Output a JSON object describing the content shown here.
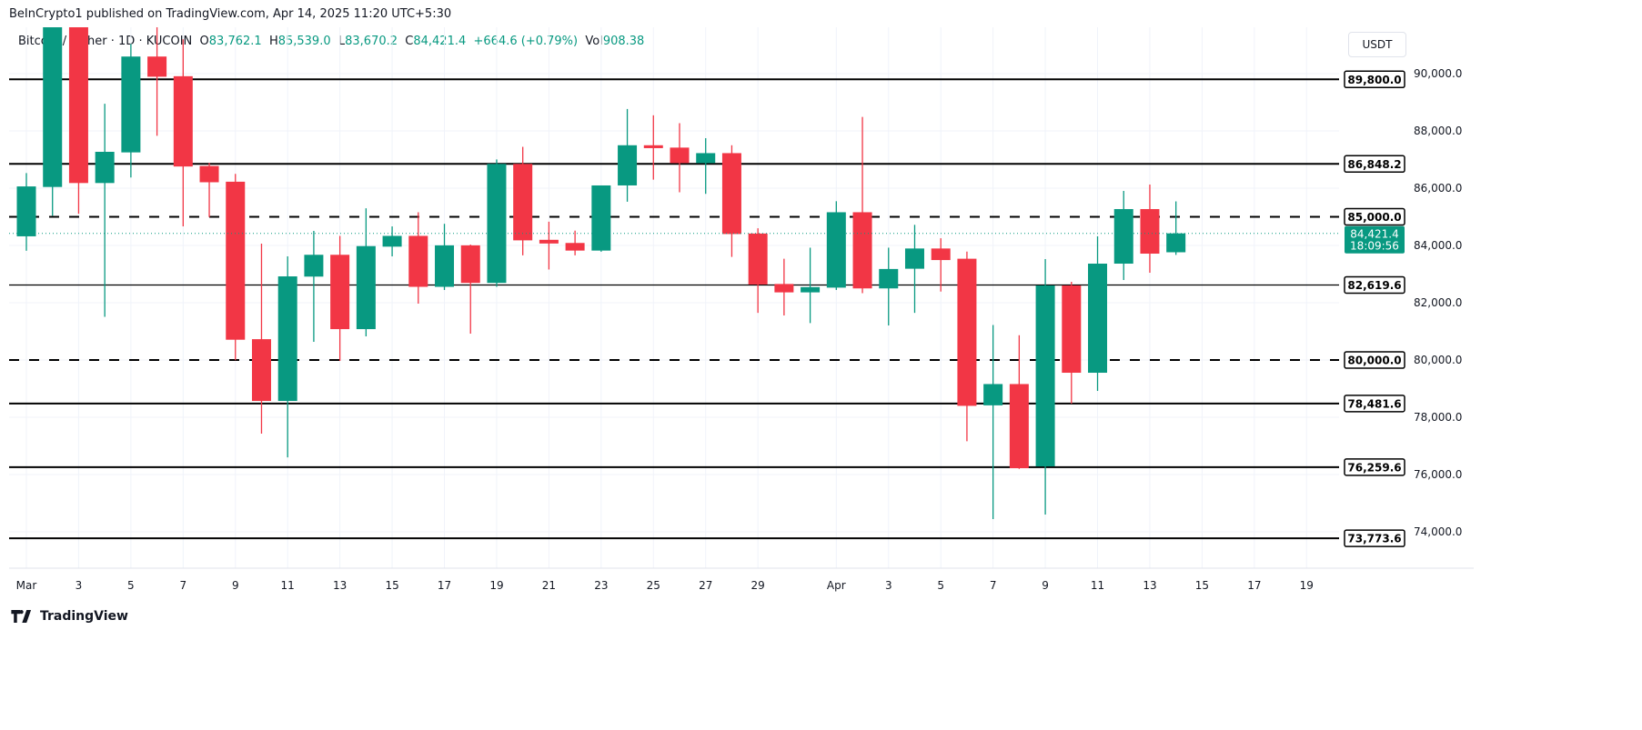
{
  "header": {
    "published": "BeInCrypto1 published on TradingView.com, Apr 14, 2025 11:20 UTC+5:30"
  },
  "legend": {
    "symbol": "Bitcoin / Tether · 1D · KUCOIN",
    "o_label": "O",
    "o": "83,762.1",
    "h_label": "H",
    "h": "85,539.0",
    "l_label": "L",
    "l": "83,670.2",
    "c_label": "C",
    "c": "84,421.4",
    "change": "+664.6 (+0.79%)",
    "vol_label": "Vol",
    "vol": "908.38"
  },
  "currency_button": "USDT",
  "footer": {
    "logo_text": "TradingView"
  },
  "colors": {
    "up": "#089981",
    "down": "#f23645",
    "lines": "#000000",
    "grid": "#f0f3fa"
  },
  "chart_data": {
    "type": "candlestick",
    "interval": "1D",
    "ylim": [
      73000,
      91700
    ],
    "grid": true,
    "columns": [
      "date",
      "open",
      "high",
      "low",
      "close"
    ],
    "candles": [
      [
        "2025-03-01",
        84319,
        86528,
        83815,
        86061
      ],
      [
        "2025-03-02",
        86042,
        95000,
        85034,
        94270
      ],
      [
        "2025-03-03",
        94270,
        95000,
        85108,
        86180
      ],
      [
        "2025-03-04",
        86180,
        88948,
        81506,
        87270
      ],
      [
        "2025-03-05",
        87250,
        91037,
        86372,
        90597
      ],
      [
        "2025-03-06",
        90597,
        92800,
        87830,
        89892
      ],
      [
        "2025-03-07",
        89910,
        91200,
        84668,
        86757
      ],
      [
        "2025-03-08",
        86775,
        86886,
        84990,
        86207
      ],
      [
        "2025-03-09",
        86226,
        86501,
        79993,
        80708
      ],
      [
        "2025-03-10",
        80727,
        84063,
        77427,
        78570
      ],
      [
        "2025-03-11",
        78570,
        83620,
        76601,
        82920
      ],
      [
        "2025-03-12",
        82912,
        84509,
        80634,
        83674
      ],
      [
        "2025-03-13",
        83674,
        84334,
        79967,
        81078
      ],
      [
        "2025-03-14",
        81078,
        85298,
        80825,
        83977
      ],
      [
        "2025-03-15",
        83958,
        84665,
        83619,
        84334
      ],
      [
        "2025-03-16",
        84334,
        85160,
        81968,
        82555
      ],
      [
        "2025-03-17",
        82555,
        84756,
        82445,
        84004
      ],
      [
        "2025-03-18",
        84004,
        84030,
        80920,
        82692
      ],
      [
        "2025-03-19",
        82692,
        87004,
        82555,
        86848
      ],
      [
        "2025-03-20",
        86848,
        87444,
        83655,
        84178
      ],
      [
        "2025-03-21",
        84197,
        84830,
        83160,
        84068
      ],
      [
        "2025-03-22",
        84087,
        84518,
        83655,
        83821
      ],
      [
        "2025-03-23",
        83821,
        86096,
        83780,
        86096
      ],
      [
        "2025-03-24",
        86096,
        88765,
        85527,
        87499
      ],
      [
        "2025-03-25",
        87499,
        88545,
        86298,
        87398
      ],
      [
        "2025-03-26",
        87417,
        88270,
        85857,
        86876
      ],
      [
        "2025-03-27",
        86876,
        87746,
        85802,
        87224
      ],
      [
        "2025-03-28",
        87224,
        87499,
        83600,
        84399
      ],
      [
        "2025-03-29",
        84417,
        84600,
        81646,
        82637
      ],
      [
        "2025-03-30",
        82655,
        83536,
        81555,
        82362
      ],
      [
        "2025-03-31",
        82362,
        83922,
        81289,
        82545
      ],
      [
        "2025-04-01",
        82527,
        85545,
        82444,
        85160
      ],
      [
        "2025-04-02",
        85160,
        88490,
        82334,
        82500
      ],
      [
        "2025-04-03",
        82500,
        83922,
        81206,
        83178
      ],
      [
        "2025-04-04",
        83187,
        84720,
        81646,
        83894
      ],
      [
        "2025-04-05",
        83894,
        84252,
        82390,
        83490
      ],
      [
        "2025-04-06",
        83536,
        83784,
        77161,
        78399
      ],
      [
        "2025-04-07",
        78417,
        81224,
        74443,
        79160
      ],
      [
        "2025-04-08",
        79160,
        80867,
        76200,
        76221
      ],
      [
        "2025-04-09",
        76284,
        83523,
        74602,
        82603
      ],
      [
        "2025-04-10",
        82603,
        82730,
        78475,
        79555
      ],
      [
        "2025-04-11",
        79555,
        84317,
        78920,
        83365
      ],
      [
        "2025-04-12",
        83365,
        85905,
        82793,
        85270
      ],
      [
        "2025-04-13",
        85270,
        86127,
        83047,
        83714
      ],
      [
        "2025-04-14",
        83762.1,
        85539.0,
        83670.2,
        84421.4
      ]
    ],
    "x_ticks": [
      {
        "day": 1,
        "label": "Mar"
      },
      {
        "day": 3,
        "label": "3"
      },
      {
        "day": 5,
        "label": "5"
      },
      {
        "day": 7,
        "label": "7"
      },
      {
        "day": 9,
        "label": "9"
      },
      {
        "day": 11,
        "label": "11"
      },
      {
        "day": 13,
        "label": "13"
      },
      {
        "day": 15,
        "label": "15"
      },
      {
        "day": 17,
        "label": "17"
      },
      {
        "day": 19,
        "label": "19"
      },
      {
        "day": 21,
        "label": "21"
      },
      {
        "day": 23,
        "label": "23"
      },
      {
        "day": 25,
        "label": "25"
      },
      {
        "day": 27,
        "label": "27"
      },
      {
        "day": 29,
        "label": "29"
      },
      {
        "day": 32,
        "label": "Apr"
      },
      {
        "day": 34,
        "label": "3"
      },
      {
        "day": 36,
        "label": "5"
      },
      {
        "day": 38,
        "label": "7"
      },
      {
        "day": 40,
        "label": "9"
      },
      {
        "day": 42,
        "label": "11"
      },
      {
        "day": 44,
        "label": "13"
      },
      {
        "day": 46,
        "label": "15"
      },
      {
        "day": 48,
        "label": "17"
      },
      {
        "day": 50,
        "label": "19"
      }
    ],
    "y_ticks": [
      {
        "value": 74000,
        "label": "74,000.0"
      },
      {
        "value": 76000,
        "label": "76,000.0"
      },
      {
        "value": 78000,
        "label": "78,000.0"
      },
      {
        "value": 80000,
        "label": "80,000.0"
      },
      {
        "value": 82000,
        "label": "82,000.0"
      },
      {
        "value": 84000,
        "label": "84,000.0"
      },
      {
        "value": 86000,
        "label": "86,000.0"
      },
      {
        "value": 88000,
        "label": "88,000.0"
      },
      {
        "value": 90000,
        "label": "90,000.0"
      }
    ],
    "price_lines": [
      {
        "value": 89800.0,
        "label": "89,800.0",
        "style": "solid"
      },
      {
        "value": 86848.2,
        "label": "86,848.2",
        "style": "solid"
      },
      {
        "value": 85000.0,
        "label": "85,000.0",
        "style": "dashed"
      },
      {
        "value": 82619.6,
        "label": "82,619.6",
        "style": "thin"
      },
      {
        "value": 80000.0,
        "label": "80,000.0",
        "style": "dashed"
      },
      {
        "value": 78481.6,
        "label": "78,481.6",
        "style": "solid"
      },
      {
        "value": 76259.6,
        "label": "76,259.6",
        "style": "solid"
      },
      {
        "value": 73773.6,
        "label": "73,773.6",
        "style": "solid"
      }
    ],
    "last_price": {
      "value": 84421.4,
      "label": "84,421.4",
      "countdown": "18:09:56"
    }
  }
}
